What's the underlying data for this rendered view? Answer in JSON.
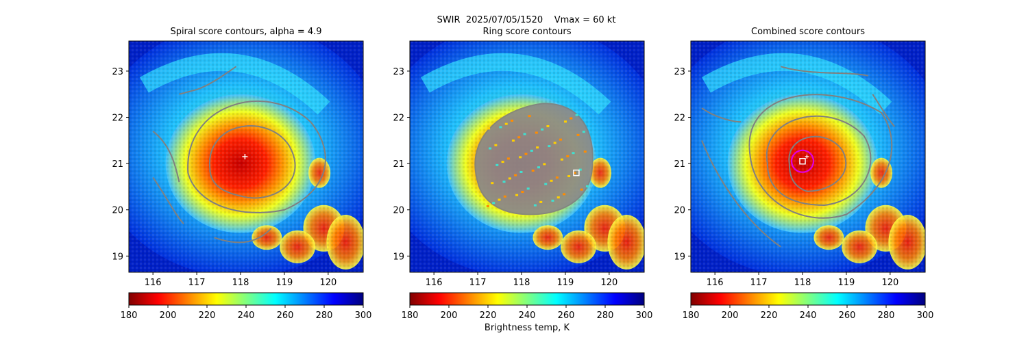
{
  "suptitle": {
    "line1": "SWIR  2025/07/05/1520    Vmax = 60 kt"
  },
  "colorbar": {
    "label": "Brightness temp, K",
    "ticks": [
      "180",
      "200",
      "220",
      "240",
      "260",
      "280",
      "300"
    ],
    "range": [
      180,
      300
    ],
    "colors": [
      "#800000",
      "#ff0000",
      "#ff8000",
      "#ffff00",
      "#80ff80",
      "#00ffff",
      "#0080ff",
      "#0000ff",
      "#000080"
    ]
  },
  "chart_data": [
    {
      "type": "heatmap",
      "title": "Spiral score contours, alpha =  4.9",
      "x_ticks": [
        "116",
        "117",
        "118",
        "119",
        "120"
      ],
      "y_ticks": [
        "19",
        "20",
        "21",
        "22",
        "23"
      ],
      "xlim": [
        115.45,
        120.8
      ],
      "ylim": [
        18.65,
        23.65
      ],
      "center_marker": {
        "shape": "plus",
        "lon": 118.1,
        "lat": 21.15
      },
      "contour_color": "#808080"
    },
    {
      "type": "heatmap",
      "title": "Ring score contours",
      "x_ticks": [
        "116",
        "117",
        "118",
        "119",
        "120"
      ],
      "y_ticks": [
        "19",
        "20",
        "21",
        "22",
        "23"
      ],
      "xlim": [
        115.45,
        120.8
      ],
      "ylim": [
        18.65,
        23.65
      ],
      "center_marker": {
        "shape": "square",
        "lon": 119.25,
        "lat": 20.8
      },
      "contour_color": "#808080"
    },
    {
      "type": "heatmap",
      "title": "Combined score contours",
      "x_ticks": [
        "116",
        "117",
        "118",
        "119",
        "120"
      ],
      "y_ticks": [
        "19",
        "20",
        "21",
        "22",
        "23"
      ],
      "xlim": [
        115.45,
        120.8
      ],
      "ylim": [
        18.65,
        23.65
      ],
      "center_marker": {
        "shape": "square",
        "lon": 118.0,
        "lat": 21.05
      },
      "plus_marker": {
        "lon": 118.1,
        "lat": 21.15
      },
      "circle_marker": {
        "lon": 118.0,
        "lat": 21.05,
        "radius_deg": 0.25,
        "color": "#e000e0"
      },
      "contour_color": "#808080"
    }
  ]
}
